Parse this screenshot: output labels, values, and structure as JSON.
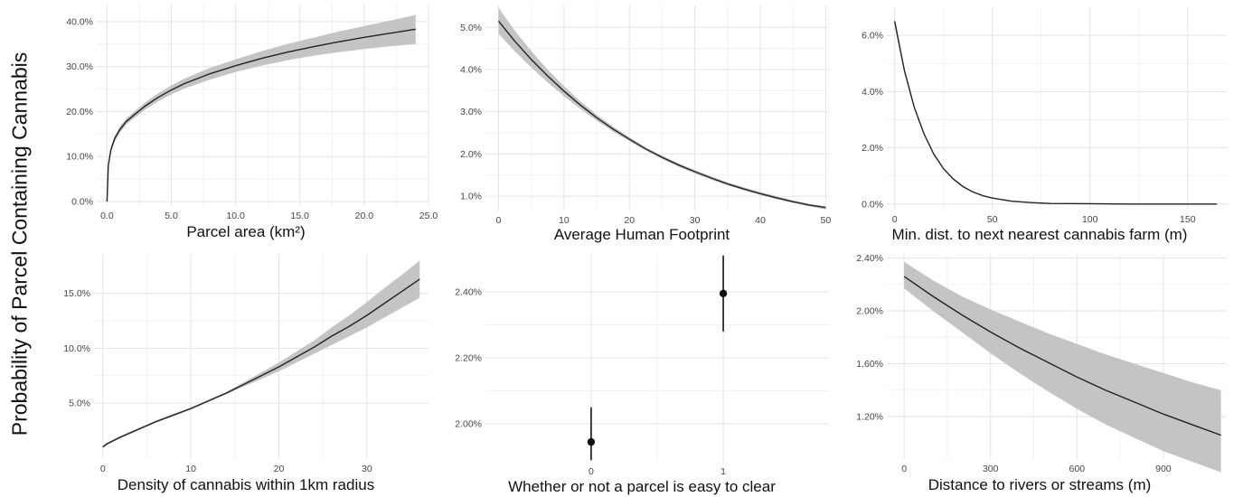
{
  "figure": {
    "ylabel": "Probability of Parcel Containing Cannabis"
  },
  "chart_data": [
    {
      "type": "line",
      "xlabel": "Parcel area (km²)",
      "xlim": [
        -0.8,
        25
      ],
      "ylim": [
        -0.01,
        0.44
      ],
      "xticks": [
        0,
        5,
        10,
        15,
        20,
        25
      ],
      "xtick_labels": [
        "0.0",
        "5.0",
        "10.0",
        "15.0",
        "20.0",
        "25.0"
      ],
      "yticks": [
        0.0,
        0.1,
        0.2,
        0.3,
        0.4
      ],
      "ytick_labels": [
        "0.0%",
        "10.0%",
        "20.0%",
        "30.0%",
        "40.0%"
      ],
      "grid": true,
      "x": [
        0,
        0.1,
        0.3,
        0.6,
        1.0,
        1.5,
        2,
        3,
        4,
        5,
        6,
        8,
        10,
        12,
        14,
        16,
        18,
        20,
        22,
        24
      ],
      "y": [
        0.0,
        0.08,
        0.115,
        0.14,
        0.16,
        0.178,
        0.19,
        0.213,
        0.232,
        0.248,
        0.262,
        0.284,
        0.302,
        0.318,
        0.332,
        0.344,
        0.355,
        0.365,
        0.374,
        0.383
      ],
      "lower": [
        0.0,
        0.075,
        0.108,
        0.133,
        0.153,
        0.171,
        0.183,
        0.205,
        0.223,
        0.238,
        0.251,
        0.271,
        0.288,
        0.302,
        0.314,
        0.324,
        0.332,
        0.339,
        0.345,
        0.35
      ],
      "upper": [
        0.0,
        0.085,
        0.122,
        0.147,
        0.167,
        0.185,
        0.197,
        0.221,
        0.241,
        0.258,
        0.273,
        0.297,
        0.316,
        0.334,
        0.35,
        0.364,
        0.378,
        0.39,
        0.402,
        0.415
      ]
    },
    {
      "type": "line",
      "xlabel": "Average Human Footprint",
      "xlim": [
        -2,
        50.5
      ],
      "ylim": [
        0.0066,
        0.0552
      ],
      "xticks": [
        0,
        10,
        20,
        30,
        40,
        50
      ],
      "xtick_labels": [
        "0",
        "10",
        "20",
        "30",
        "40",
        "50"
      ],
      "yticks": [
        0.01,
        0.02,
        0.03,
        0.04,
        0.05
      ],
      "ytick_labels": [
        "1.0%",
        "2.0%",
        "3.0%",
        "4.0%",
        "5.0%"
      ],
      "grid": true,
      "x": [
        0,
        2.5,
        5,
        7.5,
        10,
        12.5,
        15,
        17.5,
        20,
        22.5,
        25,
        27.5,
        30,
        32.5,
        35,
        37.5,
        40,
        42.5,
        45,
        47.5,
        50
      ],
      "y": [
        0.0515,
        0.0467,
        0.0424,
        0.0385,
        0.0349,
        0.0316,
        0.0286,
        0.0259,
        0.0235,
        0.0212,
        0.0192,
        0.0174,
        0.0158,
        0.0143,
        0.0129,
        0.0117,
        0.0106,
        0.0096,
        0.0087,
        0.0079,
        0.0073
      ],
      "lower": [
        0.0485,
        0.0443,
        0.0405,
        0.037,
        0.0337,
        0.0307,
        0.0279,
        0.0253,
        0.023,
        0.0208,
        0.0188,
        0.017,
        0.0154,
        0.0139,
        0.0126,
        0.0114,
        0.0103,
        0.0093,
        0.0084,
        0.0076,
        0.0069
      ],
      "upper": [
        0.0546,
        0.0492,
        0.0444,
        0.04,
        0.0361,
        0.0325,
        0.0293,
        0.0265,
        0.024,
        0.0216,
        0.0196,
        0.0178,
        0.0162,
        0.0147,
        0.0133,
        0.0121,
        0.011,
        0.01,
        0.009,
        0.0082,
        0.0076
      ]
    },
    {
      "type": "line",
      "xlabel": "Min. dist. to next nearest cannabis farm (m)",
      "xlim": [
        -4,
        170
      ],
      "ylim": [
        -0.002,
        0.07
      ],
      "xticks": [
        0,
        50,
        100,
        150
      ],
      "xtick_labels": [
        "0",
        "50",
        "100",
        "150"
      ],
      "yticks": [
        0.0,
        0.02,
        0.04,
        0.06
      ],
      "ytick_labels": [
        "0.0%",
        "2.0%",
        "4.0%",
        "6.0%"
      ],
      "grid": true,
      "x": [
        0,
        5,
        10,
        15,
        20,
        25,
        30,
        35,
        40,
        45,
        50,
        60,
        70,
        80,
        100,
        120,
        140,
        165
      ],
      "y": [
        0.065,
        0.0475,
        0.0345,
        0.025,
        0.0178,
        0.0126,
        0.0089,
        0.0062,
        0.0043,
        0.003,
        0.0021,
        0.001,
        0.0005,
        0.0002,
        0.0001,
        0.0,
        0.0,
        0.0
      ],
      "lower": [
        0.0635,
        0.0465,
        0.0339,
        0.0246,
        0.0175,
        0.0124,
        0.0088,
        0.0061,
        0.0042,
        0.003,
        0.0021,
        0.001,
        0.0005,
        0.0002,
        0.0001,
        0.0,
        0.0,
        0.0
      ],
      "upper": [
        0.0665,
        0.0485,
        0.0352,
        0.0254,
        0.0181,
        0.0128,
        0.0091,
        0.0063,
        0.0044,
        0.0031,
        0.0022,
        0.001,
        0.0005,
        0.0002,
        0.0001,
        0.0,
        0.0,
        0.0
      ]
    },
    {
      "type": "line",
      "xlabel": "Density of cannabis within 1km radius",
      "xlim": [
        -1,
        37
      ],
      "ylim": [
        -0.001,
        0.186
      ],
      "xticks": [
        0,
        10,
        20,
        30
      ],
      "xtick_labels": [
        "0",
        "10",
        "20",
        "30"
      ],
      "yticks": [
        0.05,
        0.1,
        0.15
      ],
      "ytick_labels": [
        "5.0%",
        "10.0%",
        "15.0%"
      ],
      "grid": true,
      "x": [
        0,
        0.5,
        1,
        2,
        4,
        6,
        8,
        10,
        12,
        14,
        16,
        18,
        20,
        22,
        24,
        26,
        28,
        30,
        32,
        34,
        36
      ],
      "y": [
        0.01,
        0.013,
        0.015,
        0.019,
        0.026,
        0.033,
        0.039,
        0.045,
        0.052,
        0.059,
        0.067,
        0.075,
        0.083,
        0.092,
        0.101,
        0.111,
        0.12,
        0.13,
        0.141,
        0.152,
        0.163
      ],
      "lower": [
        0.009,
        0.012,
        0.014,
        0.018,
        0.025,
        0.032,
        0.038,
        0.044,
        0.051,
        0.058,
        0.065,
        0.072,
        0.079,
        0.087,
        0.095,
        0.103,
        0.111,
        0.119,
        0.128,
        0.137,
        0.146
      ],
      "upper": [
        0.011,
        0.014,
        0.016,
        0.02,
        0.027,
        0.034,
        0.04,
        0.046,
        0.053,
        0.06,
        0.069,
        0.078,
        0.087,
        0.097,
        0.107,
        0.119,
        0.13,
        0.142,
        0.155,
        0.167,
        0.18
      ]
    },
    {
      "type": "scatter",
      "xlabel": "Whether or not a parcel is easy to clear",
      "xlim": [
        -0.8,
        1.8
      ],
      "ylim": [
        0.01885,
        0.02515
      ],
      "xticks": [
        0,
        1
      ],
      "xtick_labels": [
        "0",
        "1"
      ],
      "yticks": [
        0.02,
        0.022,
        0.024
      ],
      "ytick_labels": [
        "2.00%",
        "2.20%",
        "2.40%"
      ],
      "grid": true,
      "x": [
        0,
        1
      ],
      "y": [
        0.01945,
        0.02395
      ],
      "lower": [
        0.0189,
        0.0228
      ],
      "upper": [
        0.0205,
        0.0251
      ]
    },
    {
      "type": "line",
      "xlabel": "Distance to rivers or streams (m)",
      "xlim": [
        -60,
        1120
      ],
      "ylim": [
        0.0088,
        0.0243
      ],
      "xticks": [
        0,
        300,
        600,
        900
      ],
      "xtick_labels": [
        "0",
        "300",
        "600",
        "900"
      ],
      "yticks": [
        0.012,
        0.016,
        0.02,
        0.024
      ],
      "ytick_labels": [
        "1.20%",
        "1.60%",
        "2.00%",
        "2.40%"
      ],
      "grid": true,
      "x": [
        0,
        100,
        200,
        300,
        400,
        500,
        600,
        700,
        800,
        900,
        1000,
        1100
      ],
      "y": [
        0.0226,
        0.0211,
        0.0197,
        0.0184,
        0.0172,
        0.0161,
        0.015,
        0.014,
        0.0131,
        0.0122,
        0.0114,
        0.0106
      ],
      "lower": [
        0.0217,
        0.02,
        0.0184,
        0.0168,
        0.0153,
        0.0139,
        0.0126,
        0.0114,
        0.0104,
        0.0094,
        0.0086,
        0.0078
      ],
      "upper": [
        0.0237,
        0.0223,
        0.0211,
        0.0201,
        0.0192,
        0.0183,
        0.0175,
        0.0167,
        0.016,
        0.0153,
        0.0146,
        0.014
      ]
    }
  ]
}
